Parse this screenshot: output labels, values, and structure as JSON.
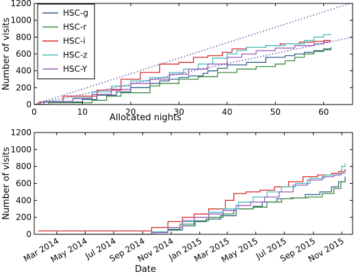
{
  "chart_data": [
    {
      "type": "line",
      "xlabel": "Allocated nights",
      "ylabel": "Number of visits",
      "xlim": [
        0,
        66
      ],
      "ylim": [
        0,
        1200
      ],
      "xticks": [
        0,
        10,
        20,
        30,
        40,
        50,
        60
      ],
      "yticks": [
        0,
        200,
        400,
        600,
        800,
        1000,
        1200
      ],
      "xtick_labels": [
        "0",
        "10",
        "20",
        "30",
        "40",
        "50",
        "60"
      ],
      "ytick_labels": [
        "0",
        "200",
        "400",
        "600",
        "800",
        "1000",
        "1200"
      ],
      "grid": false,
      "legend_position": "top-left",
      "series": [
        {
          "name": "HSC-g",
          "color": "#2e5c8a",
          "step": true,
          "x": [
            0,
            2,
            10,
            13,
            17,
            20,
            24,
            26,
            28,
            30,
            32,
            35,
            36,
            38,
            40,
            44,
            48,
            52,
            54,
            56,
            58,
            60,
            61.5
          ],
          "y": [
            0,
            30,
            60,
            110,
            150,
            200,
            250,
            280,
            300,
            320,
            340,
            370,
            400,
            430,
            470,
            500,
            560,
            580,
            600,
            620,
            640,
            660,
            680
          ]
        },
        {
          "name": "HSC-r",
          "color": "#3a8a3a",
          "step": true,
          "x": [
            0,
            3,
            12,
            15,
            18,
            24,
            26,
            30,
            34,
            38,
            42,
            46,
            50,
            52,
            54,
            56,
            58,
            60,
            61.5
          ],
          "y": [
            0,
            20,
            50,
            100,
            140,
            220,
            250,
            300,
            330,
            380,
            420,
            450,
            480,
            520,
            560,
            600,
            630,
            650,
            660
          ]
        },
        {
          "name": "HSC-i",
          "color": "#d62728",
          "step": true,
          "x": [
            0,
            1,
            6,
            13,
            18,
            22,
            26,
            30,
            33,
            36,
            39,
            41,
            44,
            48,
            51,
            55,
            58,
            60,
            61.5
          ],
          "y": [
            0,
            30,
            100,
            170,
            300,
            380,
            480,
            500,
            560,
            580,
            620,
            660,
            680,
            700,
            720,
            740,
            750,
            760,
            760
          ]
        },
        {
          "name": "HSC-z",
          "color": "#40bfbf",
          "step": true,
          "x": [
            0,
            2,
            8,
            12,
            16,
            20,
            24,
            28,
            31,
            34,
            37,
            40,
            42,
            44,
            48,
            52,
            56,
            58,
            60,
            61.5
          ],
          "y": [
            0,
            40,
            80,
            150,
            220,
            280,
            320,
            380,
            420,
            480,
            550,
            600,
            640,
            680,
            700,
            720,
            760,
            800,
            830,
            840
          ]
        },
        {
          "name": "HSC-Y",
          "color": "#9b59b6",
          "step": true,
          "x": [
            0,
            2,
            8,
            12,
            16,
            20,
            24,
            28,
            32,
            36,
            40,
            43,
            46,
            50,
            54,
            58,
            60,
            61.5
          ],
          "y": [
            0,
            30,
            70,
            120,
            180,
            250,
            300,
            360,
            420,
            480,
            560,
            600,
            640,
            670,
            700,
            720,
            740,
            740
          ]
        },
        {
          "name": "",
          "color": "#4a3aa0",
          "dotted": true,
          "x": [
            0,
            66
          ],
          "y": [
            0,
            1210
          ]
        },
        {
          "name": "",
          "color": "#4a3aa0",
          "dotted": true,
          "x": [
            0,
            66
          ],
          "y": [
            0,
            800
          ]
        }
      ]
    },
    {
      "type": "line",
      "xlabel": "Date",
      "ylabel": "Number of visits",
      "xlim": [
        "2014-01-12",
        "2015-11-24"
      ],
      "ylim": [
        0,
        1200
      ],
      "xticks": [
        "2014-03-01",
        "2014-05-01",
        "2014-07-01",
        "2014-09-01",
        "2014-11-01",
        "2015-01-01",
        "2015-03-01",
        "2015-05-01",
        "2015-07-01",
        "2015-09-01",
        "2015-11-01"
      ],
      "xtick_labels": [
        "Mar 2014",
        "May 2014",
        "Jul 2014",
        "Sep 2014",
        "Nov 2014",
        "Jan 2015",
        "Mar 2015",
        "May 2015",
        "Jul 2015",
        "Sep 2015",
        "Nov 2015"
      ],
      "yticks": [
        0,
        200,
        400,
        600,
        800,
        1000,
        1200
      ],
      "ytick_labels": [
        "0",
        "200",
        "400",
        "600",
        "800",
        "1000",
        "1200"
      ],
      "grid": false,
      "series": [
        {
          "name": "HSC-g",
          "color": "#2e5c8a",
          "step": true,
          "x": [
            "2014-03-01",
            "2014-09-20",
            "2014-10-25",
            "2014-11-25",
            "2014-12-22",
            "2015-01-15",
            "2015-02-15",
            "2015-03-20",
            "2015-04-25",
            "2015-05-15",
            "2015-06-15",
            "2015-07-15",
            "2015-08-15",
            "2015-09-15",
            "2015-10-10",
            "2015-10-25",
            "2015-11-08"
          ],
          "y": [
            0,
            20,
            50,
            100,
            150,
            180,
            220,
            300,
            330,
            380,
            420,
            430,
            470,
            500,
            560,
            620,
            680
          ]
        },
        {
          "name": "HSC-r",
          "color": "#3a8a3a",
          "step": true,
          "x": [
            "2014-03-01",
            "2014-09-25",
            "2014-10-25",
            "2014-11-20",
            "2014-12-20",
            "2015-01-20",
            "2015-02-20",
            "2015-03-15",
            "2015-04-25",
            "2015-05-25",
            "2015-06-25",
            "2015-07-20",
            "2015-08-20",
            "2015-09-20",
            "2015-10-15",
            "2015-10-30",
            "2015-11-08"
          ],
          "y": [
            0,
            20,
            60,
            120,
            160,
            200,
            240,
            300,
            320,
            380,
            420,
            430,
            440,
            480,
            540,
            620,
            650
          ]
        },
        {
          "name": "HSC-i",
          "color": "#d62728",
          "step": true,
          "x": [
            "2014-01-20",
            "2014-09-20",
            "2014-10-25",
            "2014-11-25",
            "2014-12-20",
            "2015-01-20",
            "2015-02-25",
            "2015-03-15",
            "2015-04-10",
            "2015-05-10",
            "2015-06-10",
            "2015-07-10",
            "2015-08-10",
            "2015-09-10",
            "2015-10-10",
            "2015-10-25",
            "2015-11-08"
          ],
          "y": [
            40,
            80,
            150,
            200,
            240,
            300,
            400,
            480,
            500,
            520,
            560,
            620,
            680,
            700,
            720,
            740,
            770
          ]
        },
        {
          "name": "HSC-z",
          "color": "#40bfbf",
          "step": true,
          "x": [
            "2014-03-01",
            "2014-09-20",
            "2014-10-25",
            "2014-11-25",
            "2014-12-20",
            "2015-01-20",
            "2015-02-20",
            "2015-03-25",
            "2015-04-25",
            "2015-05-25",
            "2015-06-25",
            "2015-07-25",
            "2015-08-25",
            "2015-09-25",
            "2015-10-25",
            "2015-11-01",
            "2015-11-08"
          ],
          "y": [
            0,
            30,
            80,
            150,
            200,
            260,
            300,
            380,
            440,
            500,
            560,
            600,
            660,
            700,
            720,
            800,
            840
          ]
        },
        {
          "name": "HSC-Y",
          "color": "#9b59b6",
          "step": true,
          "x": [
            "2014-03-01",
            "2014-09-20",
            "2014-10-25",
            "2014-11-25",
            "2014-12-20",
            "2015-01-20",
            "2015-02-20",
            "2015-03-20",
            "2015-04-20",
            "2015-05-20",
            "2015-06-20",
            "2015-07-20",
            "2015-08-20",
            "2015-09-20",
            "2015-10-15",
            "2015-10-30",
            "2015-11-08"
          ],
          "y": [
            0,
            20,
            80,
            160,
            200,
            240,
            280,
            340,
            380,
            440,
            500,
            580,
            640,
            680,
            700,
            720,
            720
          ]
        }
      ]
    }
  ]
}
